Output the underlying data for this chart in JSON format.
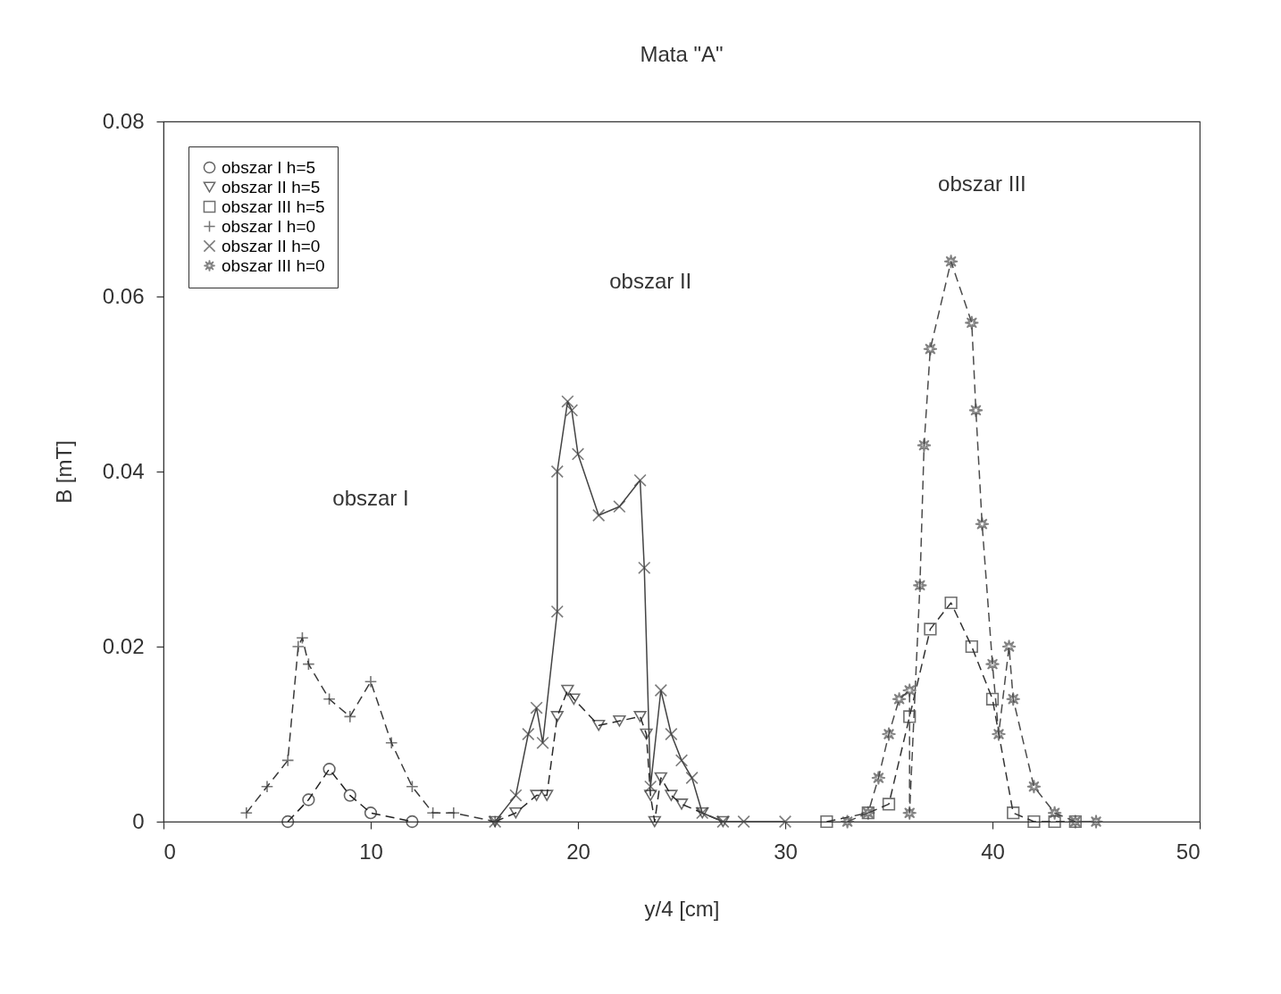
{
  "chart_data": {
    "type": "line",
    "title": "Mata \"A\"",
    "xlabel": "y/4 [cm]",
    "ylabel": "B [mT]",
    "xlim": [
      0,
      50
    ],
    "xticks": [
      0,
      10,
      20,
      30,
      40,
      50
    ],
    "ylim": [
      0,
      0.08
    ],
    "yticks": [
      0,
      0.02,
      0.04,
      0.06,
      0.08
    ],
    "grid": false,
    "legend": "top left",
    "annotations": [
      "obszar I",
      "obszar II",
      "obszar III"
    ],
    "series": [
      {
        "name": "obszar I h=5",
        "color": "#222222",
        "marker": "circle",
        "line_style": "dashed",
        "x": [
          6,
          7,
          8,
          9,
          10,
          12
        ],
        "values": [
          0,
          0.0025,
          0.006,
          0.003,
          0.001,
          0
        ]
      },
      {
        "name": "obszar II h=5",
        "color": "#2a2a2a",
        "marker": "triangle",
        "line_style": "dashed",
        "x": [
          16,
          17,
          18,
          18.5,
          19,
          19.5,
          19.8,
          21,
          22,
          23,
          23.3,
          23.5,
          23.7,
          24,
          24.5,
          25,
          26,
          27
        ],
        "values": [
          0,
          0.001,
          0.003,
          0.003,
          0.012,
          0.015,
          0.014,
          0.011,
          0.0115,
          0.012,
          0.01,
          0.003,
          0,
          0.005,
          0.003,
          0.002,
          0.001,
          0
        ]
      },
      {
        "name": "obszar III h=5",
        "color": "#333333",
        "marker": "square",
        "line_style": "dashed",
        "x": [
          32,
          34,
          35,
          36,
          37,
          38,
          39,
          40,
          41,
          42,
          43,
          44
        ],
        "values": [
          0,
          0.001,
          0.002,
          0.012,
          0.022,
          0.025,
          0.02,
          0.014,
          0.001,
          0,
          0,
          0
        ]
      },
      {
        "name": "obszar I h=0",
        "color": "#3b3b3b",
        "marker": "cross",
        "line_style": "dashed",
        "x": [
          4,
          5,
          6,
          6.5,
          6.7,
          7,
          8,
          9,
          10,
          11,
          12,
          13,
          14,
          16
        ],
        "values": [
          0.001,
          0.004,
          0.007,
          0.02,
          0.021,
          0.018,
          0.014,
          0.012,
          0.016,
          0.009,
          0.004,
          0.001,
          0.001,
          0
        ]
      },
      {
        "name": "obszar II h=0",
        "color": "#444444",
        "marker": "cross",
        "line_style": "solid",
        "x": [
          16,
          17,
          17.6,
          18,
          18.3,
          19,
          19,
          19.5,
          19.7,
          20,
          21,
          22,
          23,
          23.2,
          23.5,
          24,
          24.5,
          25,
          25.5,
          26,
          27,
          28,
          30
        ],
        "values": [
          0,
          0.003,
          0.01,
          0.013,
          0.009,
          0.024,
          0.04,
          0.048,
          0.047,
          0.042,
          0.035,
          0.036,
          0.039,
          0.029,
          0.004,
          0.015,
          0.01,
          0.007,
          0.005,
          0.001,
          0,
          0,
          0
        ]
      },
      {
        "name": "obszar III h=0",
        "color": "#4c4c4c",
        "marker": "star",
        "line_style": "dashed",
        "x": [
          33,
          34,
          34.5,
          35,
          35.5,
          36,
          36,
          36.5,
          36.7,
          37,
          38,
          39,
          39.2,
          39.5,
          40,
          40.3,
          40.8,
          41,
          42,
          43,
          44,
          45
        ],
        "values": [
          0,
          0.001,
          0.005,
          0.01,
          0.014,
          0.015,
          0.001,
          0.027,
          0.043,
          0.054,
          0.064,
          0.057,
          0.047,
          0.034,
          0.018,
          0.01,
          0.02,
          0.014,
          0.004,
          0.001,
          0,
          0
        ]
      }
    ]
  }
}
